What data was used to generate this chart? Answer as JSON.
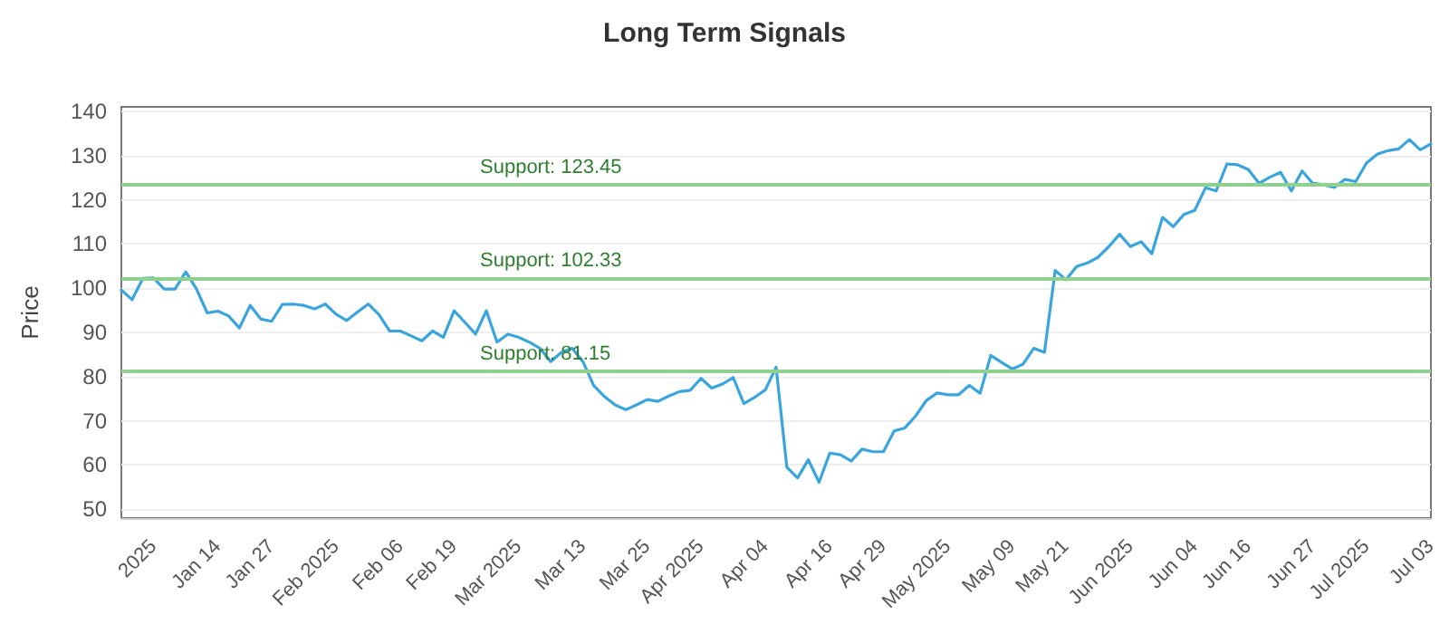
{
  "chart_data": {
    "type": "line",
    "title": "Long Term Signals",
    "ylabel": "Price",
    "categories": [
      null,
      null,
      null,
      "2025",
      null,
      null,
      null,
      null,
      null,
      "Jan 14",
      null,
      null,
      null,
      null,
      "Jan 27",
      null,
      null,
      null,
      null,
      null,
      "Feb 2025",
      null,
      null,
      null,
      null,
      null,
      "Feb 06",
      null,
      null,
      null,
      null,
      "Feb 19",
      null,
      null,
      null,
      null,
      null,
      "Mar 2025",
      null,
      null,
      null,
      null,
      null,
      "Mar 13",
      null,
      null,
      null,
      null,
      null,
      "Mar 25",
      null,
      null,
      null,
      null,
      "Apr 2025",
      null,
      null,
      null,
      null,
      null,
      "Apr 04",
      null,
      null,
      null,
      null,
      null,
      "Apr 16",
      null,
      null,
      null,
      null,
      "Apr 29",
      null,
      null,
      null,
      null,
      null,
      "May 2025",
      null,
      null,
      null,
      null,
      null,
      "May 09",
      null,
      null,
      null,
      null,
      "May 21",
      null,
      null,
      null,
      null,
      null,
      "Jun 2025",
      null,
      null,
      null,
      null,
      null,
      "Jun 04",
      null,
      null,
      null,
      null,
      "Jun 16",
      null,
      null,
      null,
      null,
      null,
      "Jun 27",
      null,
      null,
      null,
      null,
      "Jul 2025",
      null,
      null,
      null,
      null,
      null,
      "Jul 03"
    ],
    "series": [
      {
        "color": "#3aa5dc",
        "values": [
          99.6,
          97.4,
          102.2,
          102.3,
          99.8,
          99.8,
          103.7,
          99.8,
          94.4,
          94.8,
          93.7,
          91,
          96.1,
          93,
          92.5,
          96.3,
          96.4,
          96.1,
          95.3,
          96.4,
          94.1,
          92.7,
          94.6,
          96.4,
          94,
          90.3,
          90.3,
          89.2,
          88.1,
          90.3,
          88.9,
          94.9,
          92.3,
          89.6,
          94.9,
          87.8,
          89.6,
          88.9,
          87.8,
          86.4,
          83.4,
          85.5,
          86.4,
          83.4,
          78,
          75.5,
          73.6,
          72.5,
          73.6,
          74.8,
          74.4,
          75.6,
          76.6,
          76.9,
          79.6,
          77.4,
          78.3,
          79.8,
          73.9,
          75.3,
          77,
          82.1,
          59.5,
          57.1,
          61.2,
          56.1,
          62.7,
          62.3,
          60.9,
          63.6,
          63,
          63,
          67.7,
          68.4,
          71.1,
          74.6,
          76.3,
          75.9,
          75.9,
          78,
          76.2,
          84.8,
          83.2,
          81.7,
          82.8,
          86.4,
          85.5,
          104,
          101.9,
          104.9,
          105.7,
          107,
          109.4,
          112.2,
          109.4,
          110.5,
          107.8,
          116,
          113.9,
          116.7,
          117.6,
          122.7,
          122,
          128.1,
          127.9,
          126.8,
          123.7,
          125.1,
          126.2,
          122,
          126.5,
          123.7,
          123.4,
          122.8,
          124.6,
          124.1,
          128.3,
          130.3,
          131.1,
          131.5,
          133.6,
          131.3,
          132.6
        ]
      }
    ],
    "ylim": [
      48,
      141
    ],
    "yticks": [
      50,
      60,
      70,
      80,
      90,
      100,
      110,
      120,
      130,
      140
    ],
    "grid": "y",
    "marker": "none",
    "line_style": "solid",
    "ref_lines": [
      {
        "axis": "y",
        "value": 123.45,
        "label": "Support: 123.45",
        "color": "#8fcf8f"
      },
      {
        "axis": "y",
        "value": 102.33,
        "label": "Support: 102.33",
        "color": "#8fcf8f"
      },
      {
        "axis": "y",
        "value": 81.15,
        "label": "Support: 81.15",
        "color": "#8fcf8f"
      }
    ]
  }
}
